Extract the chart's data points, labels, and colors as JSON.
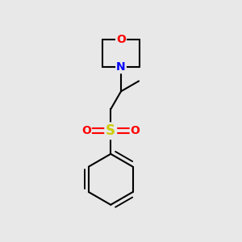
{
  "background_color": "#e8e8e8",
  "bond_color": "#000000",
  "O_color": "#ff0000",
  "N_color": "#0000ff",
  "S_color": "#cccc00",
  "so_color": "#ff0000",
  "figsize": [
    3.0,
    3.0
  ],
  "dpi": 100,
  "xlim": [
    0,
    10
  ],
  "ylim": [
    0,
    10
  ]
}
